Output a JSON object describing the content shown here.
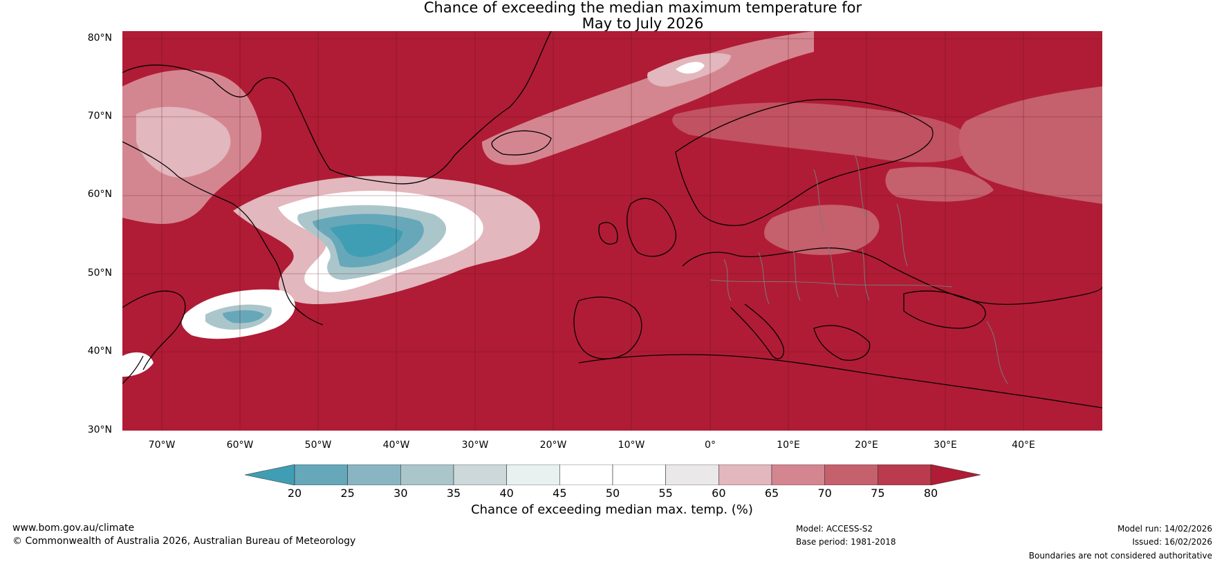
{
  "title": {
    "line1": "Chance of exceeding the median maximum temperature for",
    "line2": "May to July 2026"
  },
  "map": {
    "lat_labels": [
      "80°N",
      "70°N",
      "60°N",
      "50°N",
      "40°N",
      "30°N"
    ],
    "lon_labels": [
      "70°W",
      "60°W",
      "50°W",
      "40°W",
      "30°W",
      "20°W",
      "10°W",
      "0°",
      "10°E",
      "20°E",
      "30°E",
      "40°E"
    ],
    "extent": {
      "lon_min": -75,
      "lon_max": 50,
      "lat_min": 30,
      "lat_max": 81
    },
    "background_category": "80",
    "regions": [
      {
        "name": "north-atlantic-cool-anomaly",
        "lon_center": -40,
        "lat_center": 51,
        "min_value": 20
      },
      {
        "name": "off-us-northeast-cool-anomaly",
        "lon_center": -57,
        "lat_center": 42,
        "min_value": 25
      },
      {
        "name": "svalbard-sea-weak-anomaly",
        "lon_center": -2,
        "lat_center": 76,
        "min_value": 45
      },
      {
        "name": "scandinavia-reduced-chance",
        "lon_center": 25,
        "lat_center": 55,
        "min_value": 65
      }
    ]
  },
  "colorbar": {
    "ticks": [
      "20",
      "25",
      "30",
      "35",
      "40",
      "45",
      "50",
      "55",
      "60",
      "65",
      "70",
      "75",
      "80"
    ],
    "colors": [
      "#3f9eb3",
      "#66a8ba",
      "#89b5c3",
      "#abc6cb",
      "#ccd8da",
      "#e8f0f0",
      "#ffffff",
      "#ffffff",
      "#ebe8e9",
      "#e2b7bd",
      "#d48690",
      "#c5606d",
      "#b93b4d",
      "#b01c35"
    ],
    "label": "Chance of exceeding median max. temp. (%)"
  },
  "footer": {
    "website": "www.bom.gov.au/climate",
    "copyright": "© Commonwealth of Australia 2026, Australian Bureau of Meteorology",
    "model": "Model: ACCESS-S2",
    "base_period": "Base period: 1981-2018",
    "model_run": "Model run: 14/02/2026",
    "issued": "Issued: 16/02/2026",
    "disclaimer": "Boundaries are not considered authoritative"
  }
}
